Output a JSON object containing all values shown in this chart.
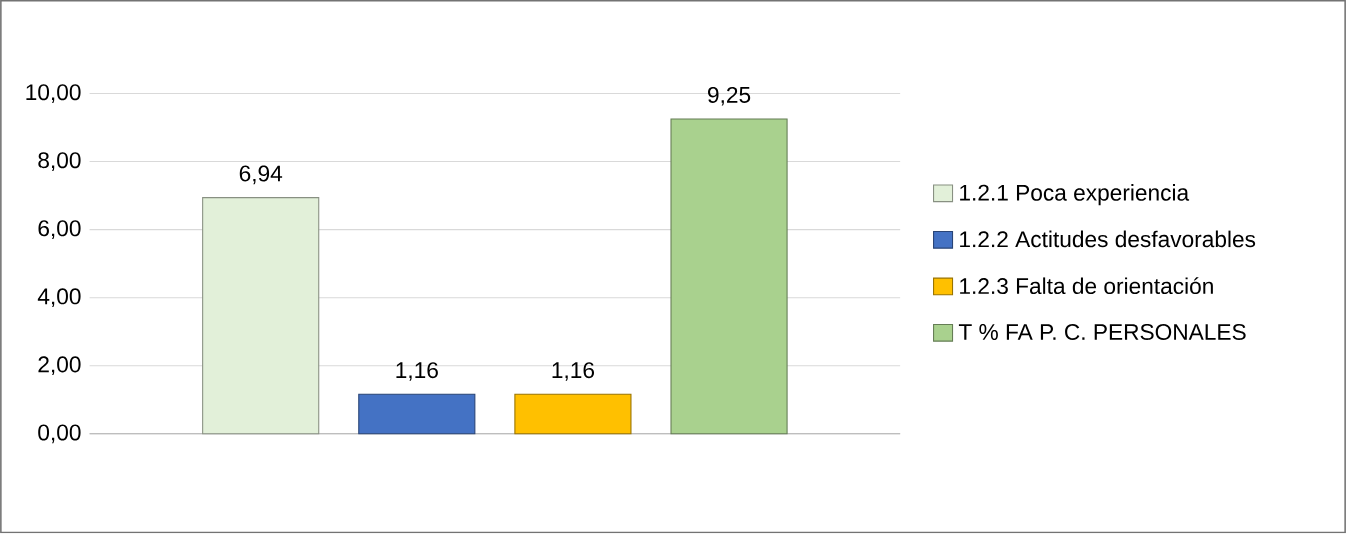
{
  "chart_data": {
    "type": "bar",
    "categories": [
      null
    ],
    "series": [
      {
        "name": "1.2.1 Poca experiencia",
        "color": "#e2f0d9",
        "values": [
          6.94
        ],
        "value_labels": [
          "6,94"
        ]
      },
      {
        "name": "1.2.2 Actitudes desfavorables",
        "color": "#4472c4",
        "values": [
          1.16
        ],
        "value_labels": [
          "1,16"
        ]
      },
      {
        "name": "1.2.3 Falta de orientación",
        "color": "#ffc000",
        "values": [
          1.16
        ],
        "value_labels": [
          "1,16"
        ]
      },
      {
        "name": "T % FA P. C. PERSONALES",
        "color": "#a9d18e",
        "values": [
          9.25
        ],
        "value_labels": [
          "9,25"
        ]
      }
    ],
    "ylim": [
      0,
      10
    ],
    "yticks": [
      {
        "value": 0,
        "label": "0,00"
      },
      {
        "value": 2,
        "label": "2,00"
      },
      {
        "value": 4,
        "label": "4,00"
      },
      {
        "value": 6,
        "label": "6,00"
      },
      {
        "value": 8,
        "label": "8,00"
      },
      {
        "value": 10,
        "label": "10,00"
      }
    ],
    "grid": "y",
    "legend": "right"
  }
}
